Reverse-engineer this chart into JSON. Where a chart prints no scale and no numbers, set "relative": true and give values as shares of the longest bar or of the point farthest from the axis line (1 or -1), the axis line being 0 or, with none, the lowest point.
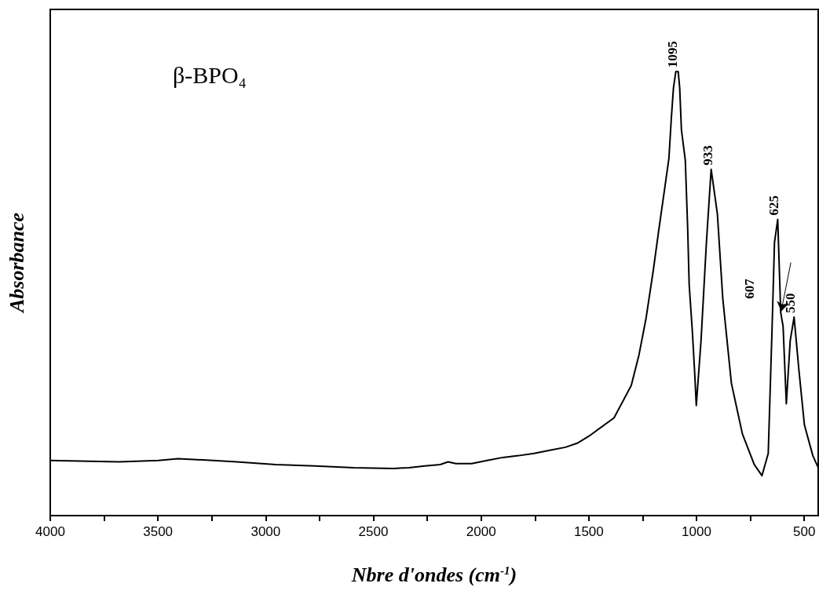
{
  "chart_data": {
    "type": "line",
    "relative": true,
    "xlabel": "Nbre d'ondes (cm$^{-1}$)",
    "ylabel": "Absorbance",
    "xlim": [
      4000,
      435
    ],
    "xticks": [
      4000,
      {
        "value": 3750,
        "label": null
      },
      3500,
      {
        "value": 3250,
        "label": null
      },
      3000,
      {
        "value": 2750,
        "label": null
      },
      2500,
      {
        "value": 2250,
        "label": null
      },
      2000,
      {
        "value": 1750,
        "label": null
      },
      1500,
      {
        "value": 1250,
        "label": null
      },
      1000,
      {
        "value": 750,
        "label": null
      },
      500
    ],
    "x": [
      4000,
      3680,
      3498,
      3407,
      3317,
      3135,
      2953,
      2771,
      2590,
      2408,
      2335,
      2262,
      2190,
      2153,
      2117,
      2044,
      1972,
      1899,
      1826,
      1754,
      1681,
      1608,
      1554,
      1499,
      1383,
      1303,
      1267,
      1234,
      1201,
      1176,
      1150,
      1128,
      1117,
      1107,
      1096,
      1085,
      1078,
      1070,
      1052,
      1041,
      1034,
      1019,
      1008,
      1001,
      979,
      954,
      932,
      903,
      878,
      838,
      787,
      732,
      696,
      667,
      649,
      638,
      623,
      609,
      598,
      583,
      565,
      547,
      525,
      499,
      460,
      435
    ],
    "series": [
      {
        "color": "#000000",
        "values": [
          0.124,
          0.121,
          0.124,
          0.128,
          0.126,
          0.121,
          0.115,
          0.112,
          0.108,
          0.106,
          0.108,
          0.112,
          0.115,
          0.121,
          0.117,
          0.117,
          0.124,
          0.131,
          0.135,
          0.14,
          0.147,
          0.154,
          0.163,
          0.179,
          0.22,
          0.293,
          0.362,
          0.445,
          0.551,
          0.64,
          0.729,
          0.805,
          0.894,
          0.963,
          1.0,
          1.0,
          0.963,
          0.869,
          0.8,
          0.647,
          0.52,
          0.413,
          0.317,
          0.248,
          0.394,
          0.615,
          0.78,
          0.679,
          0.489,
          0.298,
          0.184,
          0.115,
          0.09,
          0.14,
          0.426,
          0.615,
          0.667,
          0.457,
          0.426,
          0.252,
          0.394,
          0.447,
          0.33,
          0.204,
          0.135,
          0.108
        ]
      }
    ],
    "annotations": [
      "β-BPO₄",
      {
        "text": "1095",
        "x": 1095,
        "y": 1.0
      },
      {
        "text": "933",
        "x": 933,
        "y": 0.78
      },
      {
        "text": "625",
        "x": 625,
        "y": 0.667
      },
      {
        "text": "607",
        "x": 607,
        "y": 0.43
      },
      {
        "text": "550",
        "x": 550,
        "y": 0.447
      }
    ]
  }
}
